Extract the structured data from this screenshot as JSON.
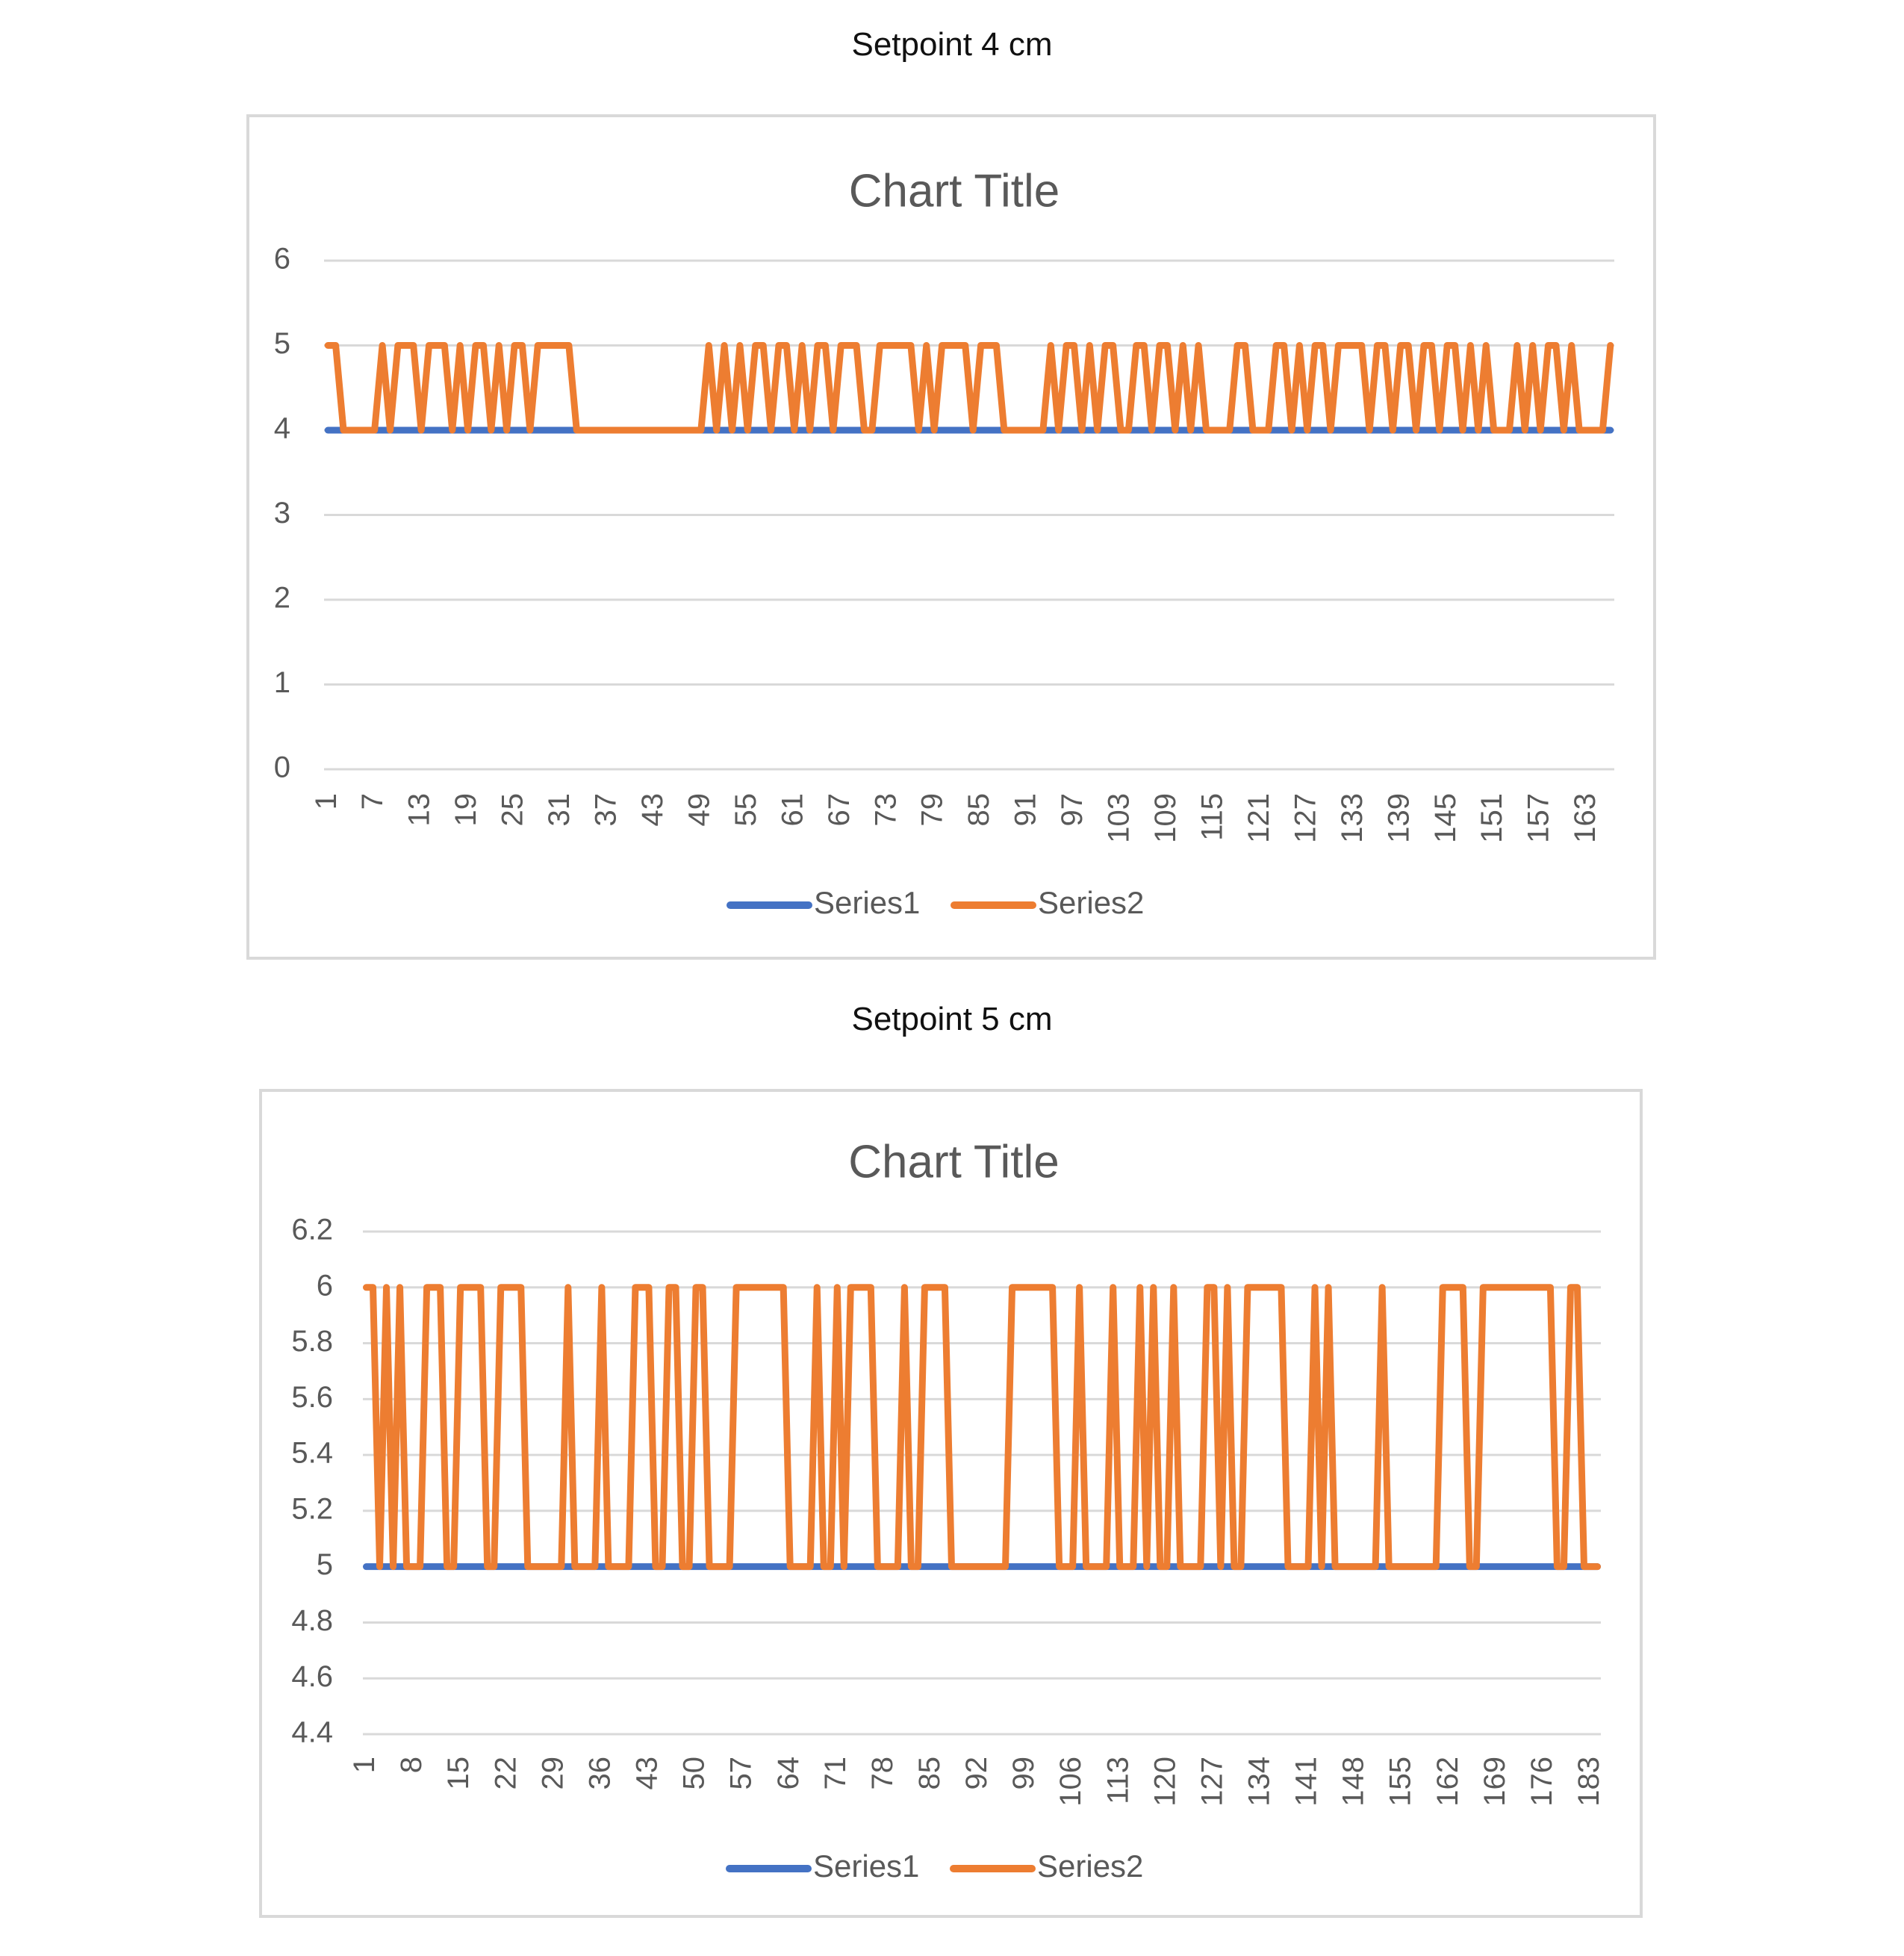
{
  "captions": [
    "Setpoint 4 cm",
    "Setpoint 5 cm"
  ],
  "colors": {
    "series1": "#4472C4",
    "series2": "#ED7D31",
    "grid": "#d9d9d9",
    "text": "#595959"
  },
  "chart_data": [
    {
      "type": "line",
      "title": "Chart Title",
      "xlabel": "",
      "ylabel": "",
      "ylim": [
        0,
        6
      ],
      "yticks": [
        "0",
        "1",
        "2",
        "3",
        "4",
        "5",
        "6"
      ],
      "x_count": 166,
      "x_tick_labels": [
        "1",
        "7",
        "13",
        "19",
        "25",
        "31",
        "37",
        "43",
        "49",
        "55",
        "61",
        "67",
        "73",
        "79",
        "85",
        "91",
        "97",
        "103",
        "109",
        "115",
        "121",
        "127",
        "133",
        "139",
        "145",
        "151",
        "157",
        "163"
      ],
      "grid": true,
      "legend_position": "bottom",
      "series": [
        {
          "name": "Series1",
          "values": [
            4,
            4,
            4,
            4,
            4,
            4,
            4,
            4,
            4,
            4,
            4,
            4,
            4,
            4,
            4,
            4,
            4,
            4,
            4,
            4,
            4,
            4,
            4,
            4,
            4,
            4,
            4,
            4,
            4,
            4,
            4,
            4,
            4,
            4,
            4,
            4,
            4,
            4,
            4,
            4,
            4,
            4,
            4,
            4,
            4,
            4,
            4,
            4,
            4,
            4,
            4,
            4,
            4,
            4,
            4,
            4,
            4,
            4,
            4,
            4,
            4,
            4,
            4,
            4,
            4,
            4,
            4,
            4,
            4,
            4,
            4,
            4,
            4,
            4,
            4,
            4,
            4,
            4,
            4,
            4,
            4,
            4,
            4,
            4,
            4,
            4,
            4,
            4,
            4,
            4,
            4,
            4,
            4,
            4,
            4,
            4,
            4,
            4,
            4,
            4,
            4,
            4,
            4,
            4,
            4,
            4,
            4,
            4,
            4,
            4,
            4,
            4,
            4,
            4,
            4,
            4,
            4,
            4,
            4,
            4,
            4,
            4,
            4,
            4,
            4,
            4,
            4,
            4,
            4,
            4,
            4,
            4,
            4,
            4,
            4,
            4,
            4,
            4,
            4,
            4,
            4,
            4,
            4,
            4,
            4,
            4,
            4,
            4,
            4,
            4,
            4,
            4,
            4,
            4,
            4,
            4,
            4,
            4,
            4,
            4,
            4,
            4,
            4,
            4,
            4,
            4
          ]
        },
        {
          "name": "Series2",
          "values": [
            5,
            5,
            4,
            4,
            4,
            4,
            4,
            5,
            4,
            5,
            5,
            5,
            4,
            5,
            5,
            5,
            4,
            5,
            4,
            5,
            5,
            4,
            5,
            4,
            5,
            5,
            4,
            5,
            5,
            5,
            5,
            5,
            4,
            4,
            4,
            4,
            4,
            4,
            4,
            4,
            4,
            4,
            4,
            4,
            4,
            4,
            4,
            4,
            4,
            5,
            4,
            5,
            4,
            5,
            4,
            5,
            5,
            4,
            5,
            5,
            4,
            5,
            4,
            5,
            5,
            4,
            5,
            5,
            5,
            4,
            4,
            5,
            5,
            5,
            5,
            5,
            4,
            5,
            4,
            5,
            5,
            5,
            5,
            4,
            5,
            5,
            5,
            4,
            4,
            4,
            4,
            4,
            4,
            5,
            4,
            5,
            5,
            4,
            5,
            4,
            5,
            5,
            4,
            4,
            5,
            5,
            4,
            5,
            5,
            4,
            5,
            4,
            5,
            4,
            4,
            4,
            4,
            5,
            5,
            4,
            4,
            4,
            5,
            5,
            4,
            5,
            4,
            5,
            5,
            4,
            5,
            5,
            5,
            5,
            4,
            5,
            5,
            4,
            5,
            5,
            4,
            5,
            5,
            4,
            5,
            5,
            4,
            5,
            4,
            5,
            4,
            4,
            4,
            5,
            4,
            5,
            4,
            5,
            5,
            4,
            5,
            4,
            4,
            4,
            4,
            5
          ]
        }
      ]
    },
    {
      "type": "line",
      "title": "Chart Title",
      "xlabel": "",
      "ylabel": "",
      "ylim": [
        4.4,
        6.2
      ],
      "yticks": [
        "4.4",
        "4.6",
        "4.8",
        "5",
        "5.2",
        "5.4",
        "5.6",
        "5.8",
        "6",
        "6.2"
      ],
      "x_count": 184,
      "x_tick_labels": [
        "1",
        "8",
        "15",
        "22",
        "29",
        "36",
        "43",
        "50",
        "57",
        "64",
        "71",
        "78",
        "85",
        "92",
        "99",
        "106",
        "113",
        "120",
        "127",
        "134",
        "141",
        "148",
        "155",
        "162",
        "169",
        "176",
        "183"
      ],
      "grid": true,
      "legend_position": "bottom",
      "series": [
        {
          "name": "Series1",
          "values": [
            5,
            5,
            5,
            5,
            5,
            5,
            5,
            5,
            5,
            5,
            5,
            5,
            5,
            5,
            5,
            5,
            5,
            5,
            5,
            5,
            5,
            5,
            5,
            5,
            5,
            5,
            5,
            5,
            5,
            5,
            5,
            5,
            5,
            5,
            5,
            5,
            5,
            5,
            5,
            5,
            5,
            5,
            5,
            5,
            5,
            5,
            5,
            5,
            5,
            5,
            5,
            5,
            5,
            5,
            5,
            5,
            5,
            5,
            5,
            5,
            5,
            5,
            5,
            5,
            5,
            5,
            5,
            5,
            5,
            5,
            5,
            5,
            5,
            5,
            5,
            5,
            5,
            5,
            5,
            5,
            5,
            5,
            5,
            5,
            5,
            5,
            5,
            5,
            5,
            5,
            5,
            5,
            5,
            5,
            5,
            5,
            5,
            5,
            5,
            5,
            5,
            5,
            5,
            5,
            5,
            5,
            5,
            5,
            5,
            5,
            5,
            5,
            5,
            5,
            5,
            5,
            5,
            5,
            5,
            5,
            5,
            5,
            5,
            5,
            5,
            5,
            5,
            5,
            5,
            5,
            5,
            5,
            5,
            5,
            5,
            5,
            5,
            5,
            5,
            5,
            5,
            5,
            5,
            5,
            5,
            5,
            5,
            5,
            5,
            5,
            5,
            5,
            5,
            5,
            5,
            5,
            5,
            5,
            5,
            5,
            5,
            5,
            5,
            5,
            5,
            5,
            5,
            5,
            5,
            5,
            5,
            5,
            5,
            5,
            5,
            5,
            5,
            5,
            5,
            5,
            5,
            5,
            5,
            5
          ]
        },
        {
          "name": "Series2",
          "values": [
            6,
            6,
            5,
            6,
            5,
            6,
            5,
            5,
            5,
            6,
            6,
            6,
            5,
            5,
            6,
            6,
            6,
            6,
            5,
            5,
            6,
            6,
            6,
            6,
            5,
            5,
            5,
            5,
            5,
            5,
            6,
            5,
            5,
            5,
            5,
            6,
            5,
            5,
            5,
            5,
            6,
            6,
            6,
            5,
            5,
            6,
            6,
            5,
            5,
            6,
            6,
            5,
            5,
            5,
            5,
            6,
            6,
            6,
            6,
            6,
            6,
            6,
            6,
            5,
            5,
            5,
            5,
            6,
            5,
            5,
            6,
            5,
            6,
            6,
            6,
            6,
            5,
            5,
            5,
            5,
            6,
            5,
            5,
            6,
            6,
            6,
            6,
            5,
            5,
            5,
            5,
            5,
            5,
            5,
            5,
            5,
            6,
            6,
            6,
            6,
            6,
            6,
            6,
            5,
            5,
            5,
            6,
            5,
            5,
            5,
            5,
            6,
            5,
            5,
            5,
            6,
            5,
            6,
            5,
            5,
            6,
            5,
            5,
            5,
            5,
            6,
            6,
            5,
            6,
            5,
            5,
            6,
            6,
            6,
            6,
            6,
            6,
            5,
            5,
            5,
            5,
            6,
            5,
            6,
            5,
            5,
            5,
            5,
            5,
            5,
            5,
            6,
            5,
            5,
            5,
            5,
            5,
            5,
            5,
            5,
            6,
            6,
            6,
            6,
            5,
            5,
            6,
            6,
            6,
            6,
            6,
            6,
            6,
            6,
            6,
            6,
            6,
            5,
            5,
            6,
            6,
            5,
            5,
            5
          ]
        }
      ]
    }
  ]
}
